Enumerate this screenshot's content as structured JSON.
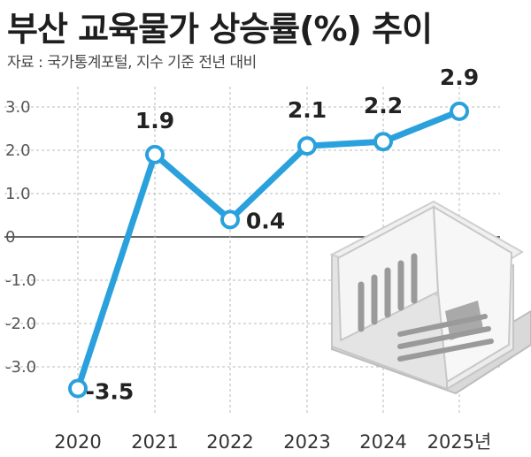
{
  "title": "부산 교육물가 상승률(%) 추이",
  "source": "자료 : 국가통계포털, 지수 기준 전년 대비",
  "colors": {
    "line": "#2aa1dc",
    "marker_fill": "#ffffff",
    "grid": "#b8b8b8",
    "zero_line": "#333333"
  },
  "chart_data": {
    "type": "line",
    "categories": [
      "2020",
      "2021",
      "2022",
      "2023",
      "2024",
      "2025년"
    ],
    "series": [
      {
        "values": [
          -3.5,
          1.9,
          0.4,
          2.1,
          2.2,
          2.9
        ]
      }
    ],
    "data_labels": [
      "-3.5",
      "1.9",
      "0.4",
      "2.1",
      "2.2",
      "2.9"
    ],
    "yticks": [
      3.0,
      2.0,
      1.0,
      0,
      -1.0,
      -2.0,
      -3.0
    ],
    "ytick_labels": [
      "3.0",
      "2.0",
      "1.0",
      "0",
      "-1.0",
      "-2.0",
      "-3.0"
    ],
    "ylim": [
      -3.8,
      3.2
    ],
    "grid": "dashed-horizontal-and-vertical",
    "decoration": "open-book-icon"
  }
}
